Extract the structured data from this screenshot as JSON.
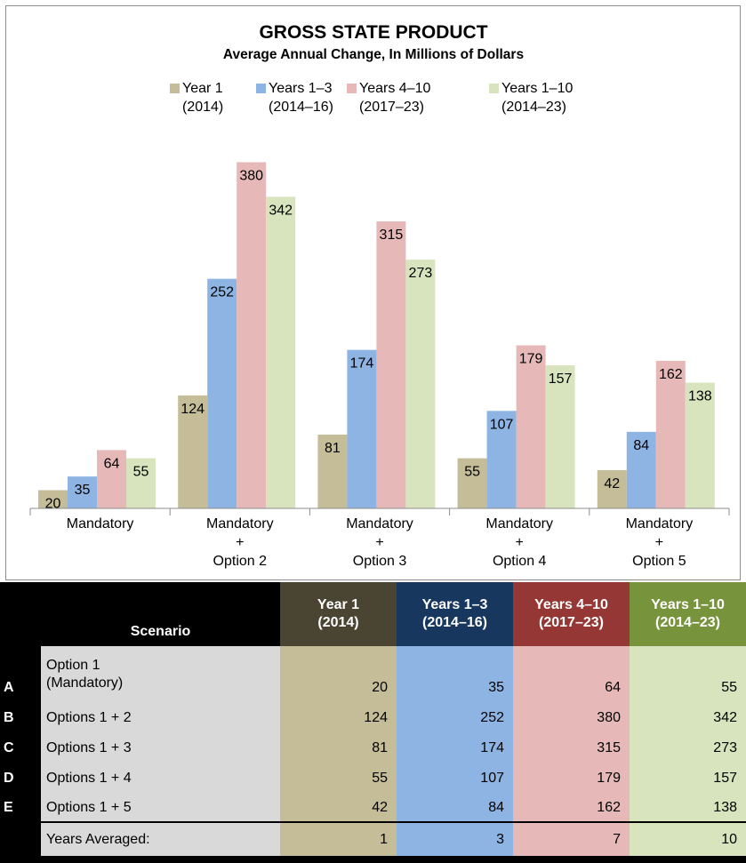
{
  "colors": {
    "series": [
      "#c4bd97",
      "#8eb4e3",
      "#e6b9b8",
      "#d7e4bd"
    ],
    "table_headers": [
      "#4a4532",
      "#17375e",
      "#953735",
      "#77933c"
    ]
  },
  "chart_data": {
    "type": "bar",
    "title": "GROSS STATE PRODUCT",
    "subtitle": "Average Annual Change, In Millions of Dollars",
    "categories": [
      [
        "Mandatory"
      ],
      [
        "Mandatory",
        "+",
        "Option 2"
      ],
      [
        "Mandatory",
        "+",
        "Option 3"
      ],
      [
        "Mandatory",
        "+",
        "Option 4"
      ],
      [
        "Mandatory",
        "+",
        "Option 5"
      ]
    ],
    "series": [
      {
        "name": "Year 1",
        "period": "(2014)",
        "values": [
          20,
          124,
          81,
          55,
          42
        ]
      },
      {
        "name": "Years 1–3",
        "period": "(2014–16)",
        "values": [
          35,
          252,
          174,
          107,
          84
        ]
      },
      {
        "name": "Years 4–10",
        "period": "(2017–23)",
        "values": [
          64,
          380,
          315,
          179,
          162
        ]
      },
      {
        "name": "Years 1–10",
        "period": "(2014–23)",
        "values": [
          55,
          342,
          273,
          157,
          138
        ]
      }
    ],
    "ylim": [
      0,
      400
    ],
    "grid": false,
    "legend_position": "top",
    "data_labels": true
  },
  "table": {
    "scenario_header": "Scenario",
    "columns": [
      {
        "line1": "Year 1",
        "line2": "(2014)"
      },
      {
        "line1": "Years 1–3",
        "line2": "(2014–16)"
      },
      {
        "line1": "Years 4–10",
        "line2": "(2017–23)"
      },
      {
        "line1": "Years 1–10",
        "line2": "(2014–23)"
      }
    ],
    "rows": [
      {
        "letter": "A",
        "label_line1": "Option 1",
        "label_line2": "(Mandatory)",
        "values": [
          "20",
          "35",
          "64",
          "55"
        ]
      },
      {
        "letter": "B",
        "label_line1": "Options 1 + 2",
        "label_line2": "",
        "values": [
          "124",
          "252",
          "380",
          "342"
        ]
      },
      {
        "letter": "C",
        "label_line1": "Options 1 + 3",
        "label_line2": "",
        "values": [
          "81",
          "174",
          "315",
          "273"
        ]
      },
      {
        "letter": "D",
        "label_line1": "Options 1 + 4",
        "label_line2": "",
        "values": [
          "55",
          "107",
          "179",
          "157"
        ]
      },
      {
        "letter": "E",
        "label_line1": "Options 1 + 5",
        "label_line2": "",
        "values": [
          "42",
          "84",
          "162",
          "138"
        ]
      }
    ],
    "averaged": {
      "label": "Years Averaged:",
      "values": [
        "1",
        "3",
        "7",
        "10"
      ]
    }
  }
}
